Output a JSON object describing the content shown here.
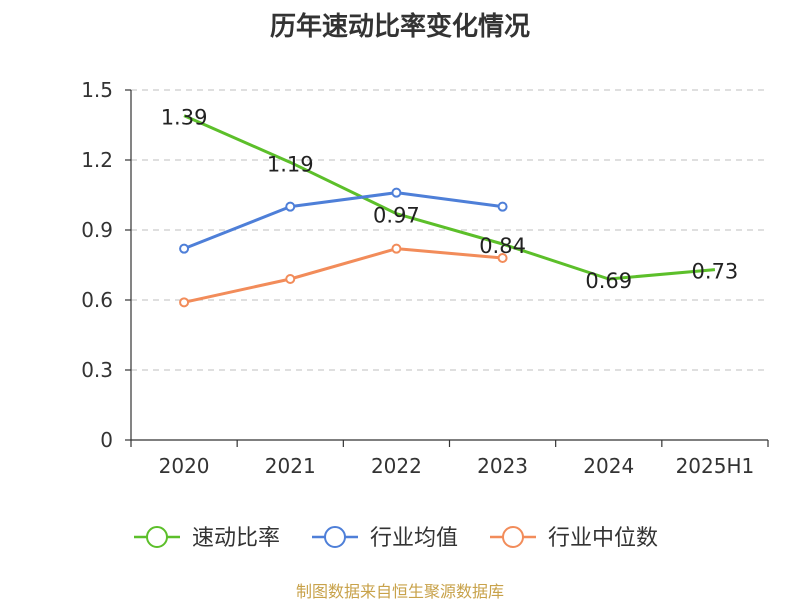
{
  "title": "历年速动比率变化情况",
  "source": "制图数据来自恒生聚源数据库",
  "chart_data": {
    "type": "line",
    "title": "历年速动比率变化情况",
    "categories": [
      "2020",
      "2021",
      "2022",
      "2023",
      "2024",
      "2025H1"
    ],
    "ylim": [
      0,
      1.5
    ],
    "yticks": [
      "0",
      "0.3",
      "0.6",
      "0.9",
      "1.2",
      "1.5"
    ],
    "grid": true,
    "legend_position": "bottom",
    "series": [
      {
        "name": "速动比率",
        "color": "#5cbf2a",
        "values": [
          1.39,
          1.19,
          0.97,
          0.84,
          0.69,
          0.73
        ],
        "labels": [
          "1.39",
          "1.19",
          "0.97",
          "0.84",
          "0.69",
          "0.73"
        ],
        "markers": false
      },
      {
        "name": "行业均值",
        "color": "#4e7fd8",
        "values": [
          0.82,
          1.0,
          1.06,
          1.0,
          null,
          null
        ],
        "markers": true
      },
      {
        "name": "行业中位数",
        "color": "#f28c5a",
        "values": [
          0.59,
          0.69,
          0.82,
          0.78,
          null,
          null
        ],
        "markers": true
      }
    ]
  }
}
